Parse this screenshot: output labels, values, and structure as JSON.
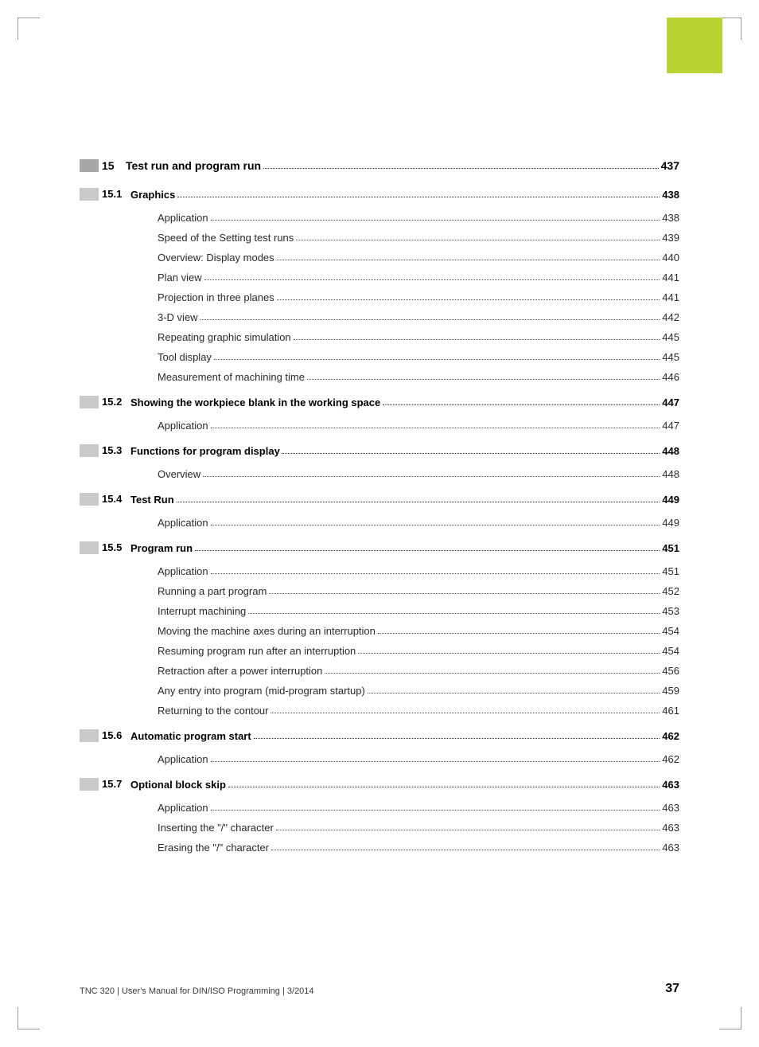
{
  "document": {
    "footer_text": "TNC 320 | User's Manual for DIN/ISO Programming | 3/2014",
    "page_number": "37",
    "accent_color": "#b8d432",
    "chapter_color": "#a7a7a7",
    "section_color": "#c9c9c9",
    "text_color": "#1a1a1a"
  },
  "toc": {
    "chapter": {
      "num": "15",
      "title": "Test run and program run",
      "page": "437"
    },
    "sections": [
      {
        "num": "15.1",
        "title": "Graphics",
        "page": "438",
        "items": [
          {
            "title": "Application",
            "page": "438"
          },
          {
            "title": "Speed of the Setting test runs",
            "page": "439"
          },
          {
            "title": "Overview: Display modes",
            "page": "440"
          },
          {
            "title": "Plan view",
            "page": "441"
          },
          {
            "title": "Projection in three planes",
            "page": "441"
          },
          {
            "title": "3-D view",
            "page": "442"
          },
          {
            "title": "Repeating graphic simulation",
            "page": "445"
          },
          {
            "title": "Tool display",
            "page": "445"
          },
          {
            "title": "Measurement of machining time",
            "page": "446"
          }
        ]
      },
      {
        "num": "15.2",
        "title": "Showing the workpiece blank in the working space",
        "page": "447",
        "items": [
          {
            "title": "Application",
            "page": "447"
          }
        ]
      },
      {
        "num": "15.3",
        "title": "Functions for program display",
        "page": "448",
        "items": [
          {
            "title": "Overview",
            "page": "448"
          }
        ]
      },
      {
        "num": "15.4",
        "title": "Test Run",
        "page": "449",
        "items": [
          {
            "title": "Application",
            "page": "449"
          }
        ]
      },
      {
        "num": "15.5",
        "title": "Program run",
        "page": "451",
        "items": [
          {
            "title": "Application",
            "page": "451"
          },
          {
            "title": "Running a part program",
            "page": "452"
          },
          {
            "title": "Interrupt machining",
            "page": "453"
          },
          {
            "title": "Moving the machine axes during an interruption",
            "page": "454"
          },
          {
            "title": "Resuming program run after an interruption",
            "page": "454"
          },
          {
            "title": "Retraction after a power interruption",
            "page": "456"
          },
          {
            "title": "Any entry into program (mid-program startup)",
            "page": "459"
          },
          {
            "title": "Returning to the contour",
            "page": "461"
          }
        ]
      },
      {
        "num": "15.6",
        "title": "Automatic program start",
        "page": "462",
        "items": [
          {
            "title": "Application",
            "page": "462"
          }
        ]
      },
      {
        "num": "15.7",
        "title": "Optional block skip",
        "page": "463",
        "items": [
          {
            "title": "Application",
            "page": "463"
          },
          {
            "title": "Inserting the \"/\" character",
            "page": "463"
          },
          {
            "title": "Erasing the \"/\" character",
            "page": "463"
          }
        ]
      }
    ]
  }
}
